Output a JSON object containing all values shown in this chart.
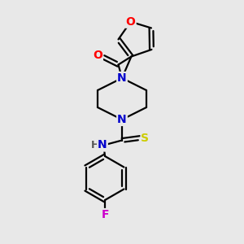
{
  "bg_color": "#e8e8e8",
  "bond_color": "#000000",
  "atom_colors": {
    "O": "#ff0000",
    "N": "#0000cc",
    "S": "#cccc00",
    "F": "#cc00cc",
    "H": "#555555",
    "C": "#000000"
  },
  "line_width": 1.6,
  "font_size": 10,
  "figsize": [
    3.0,
    3.0
  ],
  "dpi": 100,
  "xlim": [
    0,
    10
  ],
  "ylim": [
    0,
    10
  ]
}
